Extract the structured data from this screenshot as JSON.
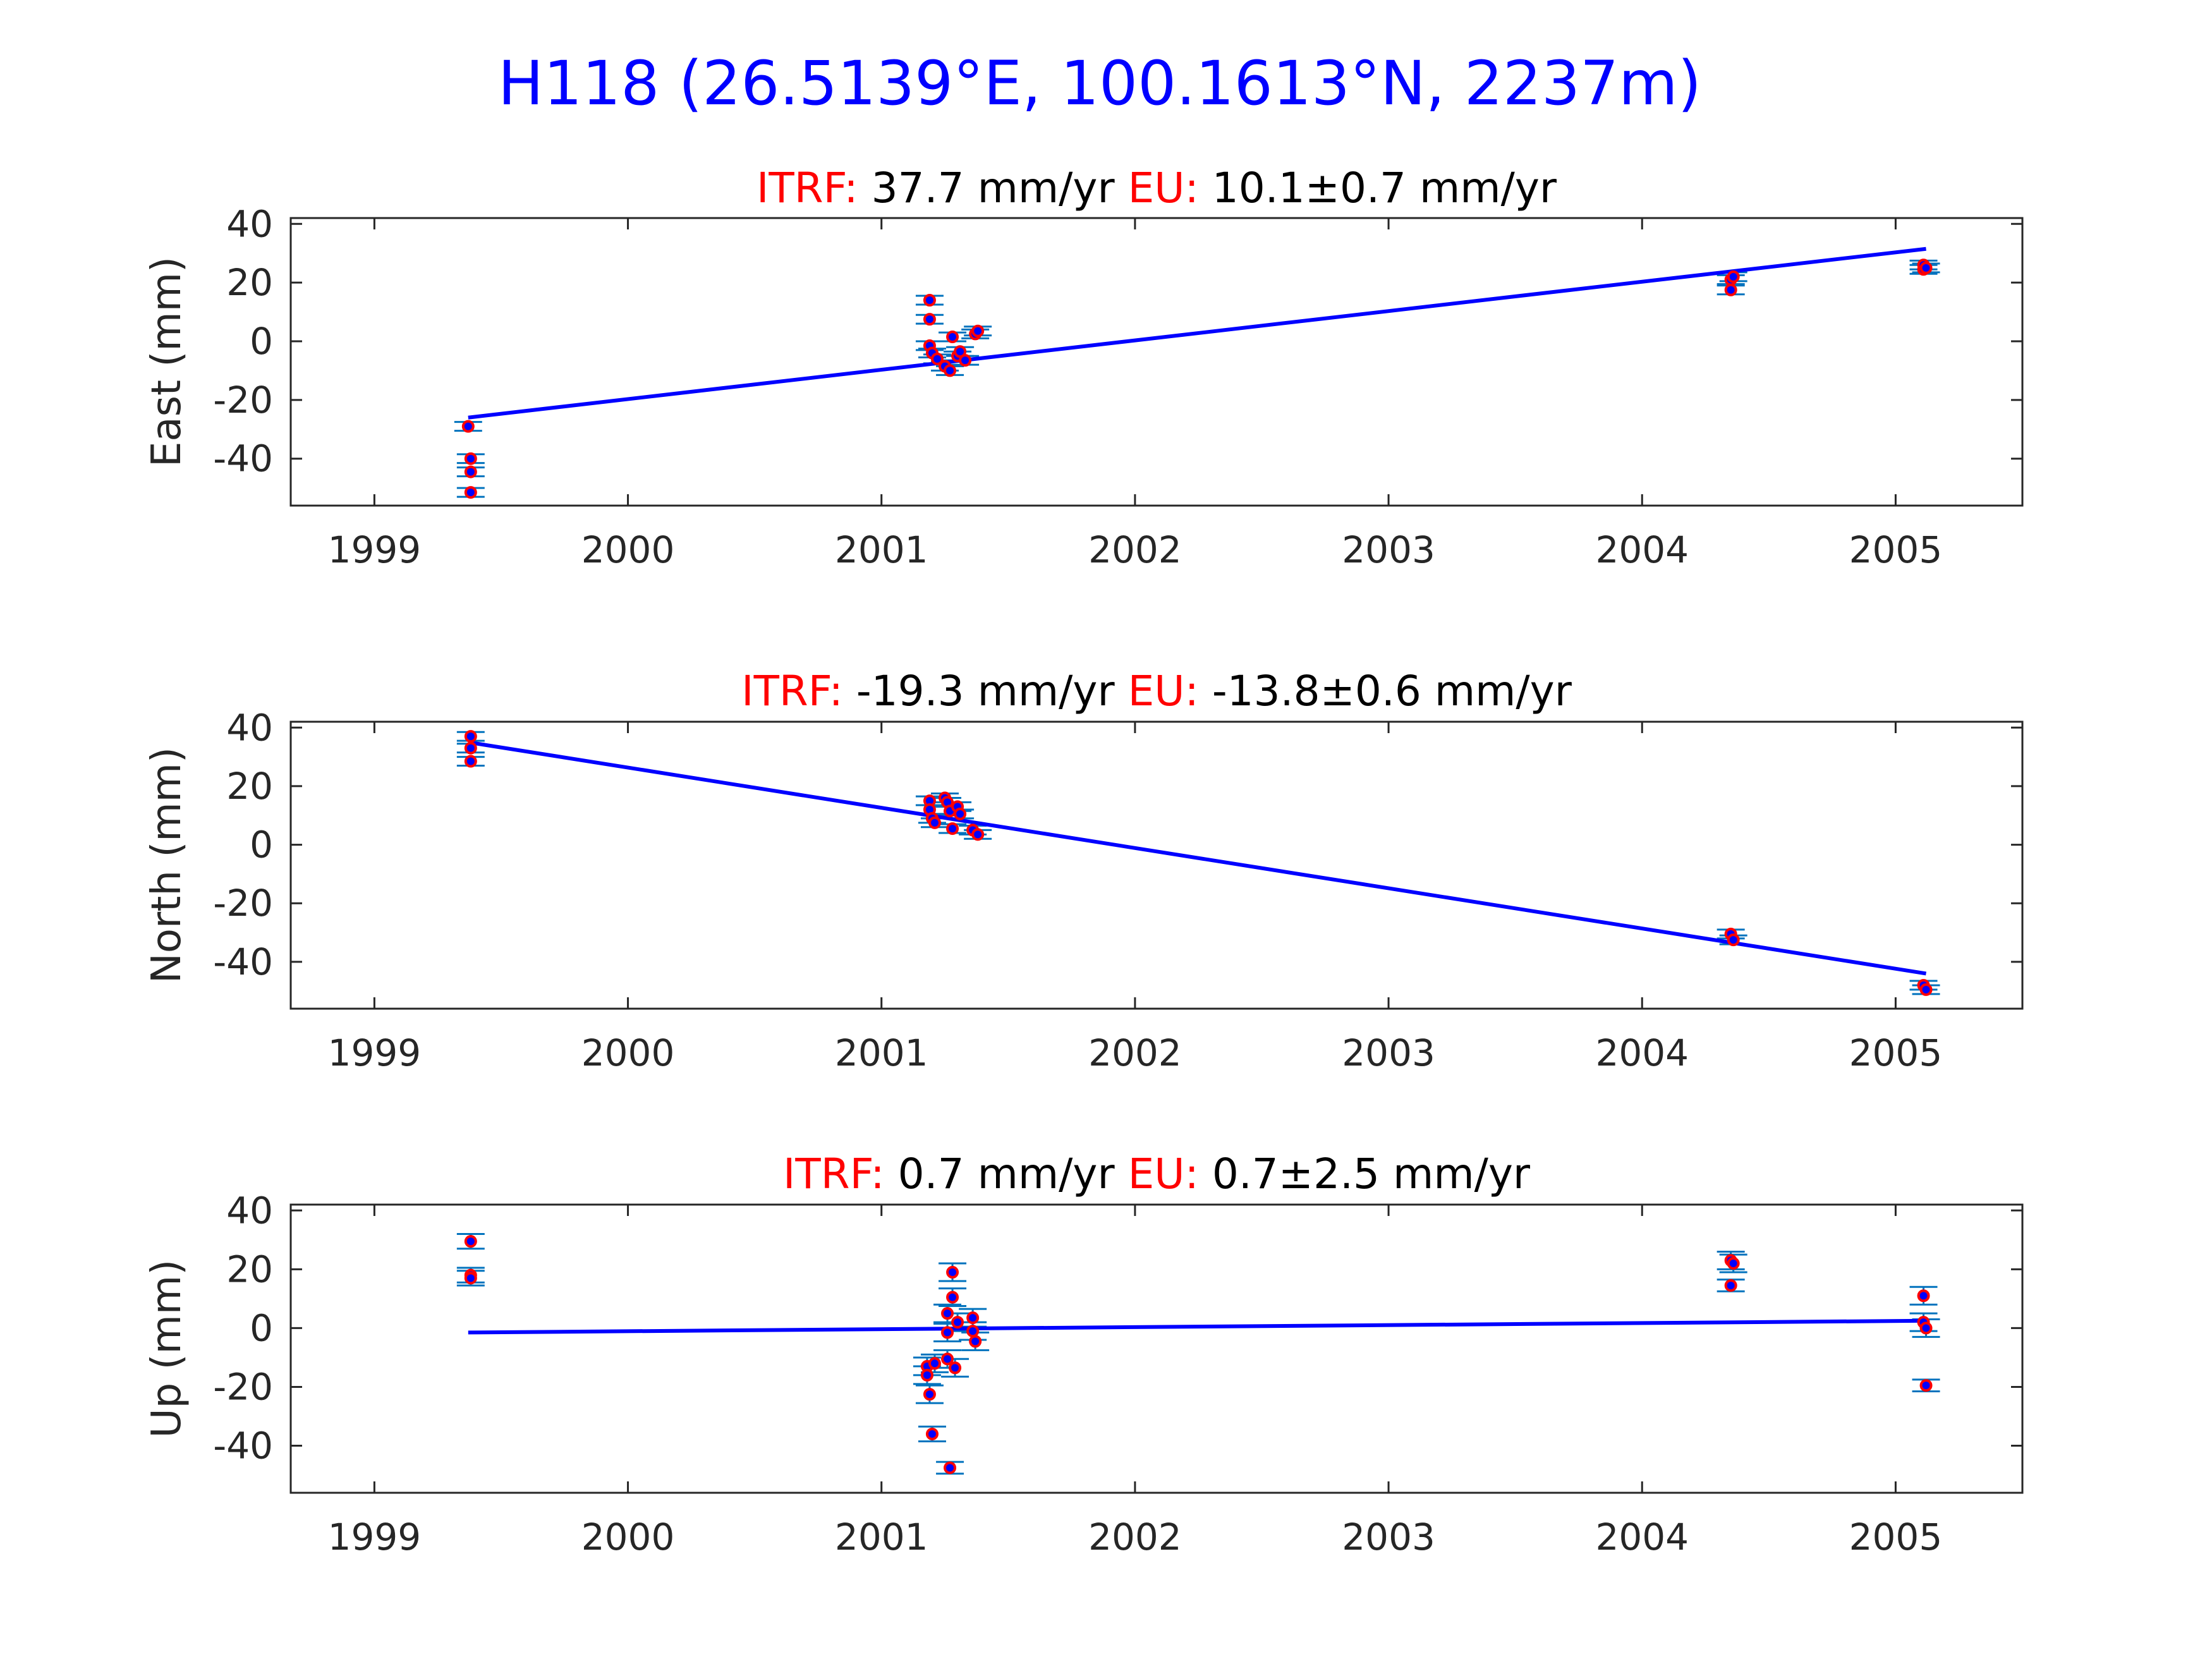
{
  "figure": {
    "title": "H118 (26.5139°E, 100.1613°N, 2237m)",
    "title_color": "#0000ff"
  },
  "colors": {
    "fit_line": "#0000ff",
    "errorbar": "#0072bd",
    "marker_fill": "#0000ff",
    "marker_edge": "#ff0000",
    "label_red": "#ff0000"
  },
  "chart_data": [
    {
      "type": "scatter",
      "ylabel": "East (mm)",
      "subtitle": {
        "itrf_label": "ITRF:",
        "itrf_value": "37.7 mm/yr",
        "eu_label": "EU:",
        "eu_value": "10.1±0.7 mm/yr"
      },
      "xlim": [
        1998.67,
        2005.5
      ],
      "ylim": [
        -56,
        42
      ],
      "x_ticks": [
        1999,
        2000,
        2001,
        2002,
        2003,
        2004,
        2005
      ],
      "y_ticks": [
        40,
        20,
        0,
        -20,
        -40
      ],
      "fit": {
        "x": [
          1999.37,
          2005.12
        ],
        "y": [
          -26,
          31.5
        ]
      },
      "points": [
        {
          "x": 1999.37,
          "y": -29,
          "err": 1.5
        },
        {
          "x": 1999.38,
          "y": -40,
          "err": 1.5
        },
        {
          "x": 1999.38,
          "y": -44.5,
          "err": 1.5
        },
        {
          "x": 1999.38,
          "y": -51.5,
          "err": 1.5
        },
        {
          "x": 2001.19,
          "y": 14,
          "err": 1.5
        },
        {
          "x": 2001.19,
          "y": 7.5,
          "err": 1.5
        },
        {
          "x": 2001.19,
          "y": -1.5,
          "err": 1.5
        },
        {
          "x": 2001.2,
          "y": -4,
          "err": 1.5
        },
        {
          "x": 2001.22,
          "y": -6,
          "err": 1.5
        },
        {
          "x": 2001.25,
          "y": -8.5,
          "err": 1.5
        },
        {
          "x": 2001.27,
          "y": -10,
          "err": 1.5
        },
        {
          "x": 2001.28,
          "y": 1.5,
          "err": 1.5
        },
        {
          "x": 2001.3,
          "y": -5,
          "err": 1.5
        },
        {
          "x": 2001.31,
          "y": -3.5,
          "err": 1.5
        },
        {
          "x": 2001.33,
          "y": -6.5,
          "err": 1.5
        },
        {
          "x": 2001.37,
          "y": 2.5,
          "err": 1.5
        },
        {
          "x": 2001.38,
          "y": 3.5,
          "err": 1.5
        },
        {
          "x": 2004.35,
          "y": 17.5,
          "err": 1.5
        },
        {
          "x": 2004.35,
          "y": 21,
          "err": 1.5
        },
        {
          "x": 2004.36,
          "y": 22,
          "err": 1.5
        },
        {
          "x": 2005.11,
          "y": 24.5,
          "err": 1.5
        },
        {
          "x": 2005.11,
          "y": 26,
          "err": 1.5
        },
        {
          "x": 2005.12,
          "y": 25,
          "err": 1.5
        }
      ]
    },
    {
      "type": "scatter",
      "ylabel": "North (mm)",
      "subtitle": {
        "itrf_label": "ITRF:",
        "itrf_value": "-19.3 mm/yr",
        "eu_label": "EU:",
        "eu_value": "-13.8±0.6 mm/yr"
      },
      "xlim": [
        1998.67,
        2005.5
      ],
      "ylim": [
        -56,
        42
      ],
      "x_ticks": [
        1999,
        2000,
        2001,
        2002,
        2003,
        2004,
        2005
      ],
      "y_ticks": [
        40,
        20,
        0,
        -20,
        -40
      ],
      "fit": {
        "x": [
          1999.37,
          2005.12
        ],
        "y": [
          35,
          -44
        ]
      },
      "points": [
        {
          "x": 1999.38,
          "y": 37,
          "err": 1.5
        },
        {
          "x": 1999.38,
          "y": 33,
          "err": 1.5
        },
        {
          "x": 1999.38,
          "y": 28.5,
          "err": 1.5
        },
        {
          "x": 2001.19,
          "y": 15,
          "err": 1.5
        },
        {
          "x": 2001.19,
          "y": 12,
          "err": 1.5
        },
        {
          "x": 2001.2,
          "y": 9,
          "err": 1.5
        },
        {
          "x": 2001.21,
          "y": 7.5,
          "err": 1.5
        },
        {
          "x": 2001.25,
          "y": 16,
          "err": 1.5
        },
        {
          "x": 2001.26,
          "y": 14.5,
          "err": 1.5
        },
        {
          "x": 2001.27,
          "y": 11.5,
          "err": 1.5
        },
        {
          "x": 2001.28,
          "y": 5.5,
          "err": 1.5
        },
        {
          "x": 2001.3,
          "y": 13,
          "err": 1.5
        },
        {
          "x": 2001.31,
          "y": 10.5,
          "err": 1.5
        },
        {
          "x": 2001.36,
          "y": 5,
          "err": 1.5
        },
        {
          "x": 2001.38,
          "y": 3.5,
          "err": 1.5
        },
        {
          "x": 2004.35,
          "y": -30.5,
          "err": 1.5
        },
        {
          "x": 2004.36,
          "y": -32.5,
          "err": 1.5
        },
        {
          "x": 2005.11,
          "y": -48,
          "err": 1.5
        },
        {
          "x": 2005.12,
          "y": -49.5,
          "err": 1.5
        }
      ]
    },
    {
      "type": "scatter",
      "ylabel": "Up (mm)",
      "subtitle": {
        "itrf_label": "ITRF:",
        "itrf_value": "0.7 mm/yr",
        "eu_label": "EU:",
        "eu_value": "0.7±2.5 mm/yr"
      },
      "xlim": [
        1998.67,
        2005.5
      ],
      "ylim": [
        -56,
        42
      ],
      "x_ticks": [
        1999,
        2000,
        2001,
        2002,
        2003,
        2004,
        2005
      ],
      "y_ticks": [
        40,
        20,
        0,
        -20,
        -40
      ],
      "fit": {
        "x": [
          1999.37,
          2005.12
        ],
        "y": [
          -1.5,
          2.5
        ]
      },
      "points": [
        {
          "x": 1999.38,
          "y": 29.5,
          "err": 2.5
        },
        {
          "x": 1999.38,
          "y": 18,
          "err": 2.5
        },
        {
          "x": 1999.38,
          "y": 17,
          "err": 2.5
        },
        {
          "x": 2001.18,
          "y": -13,
          "err": 3
        },
        {
          "x": 2001.18,
          "y": -16,
          "err": 3
        },
        {
          "x": 2001.19,
          "y": -22.5,
          "err": 3
        },
        {
          "x": 2001.2,
          "y": -36,
          "err": 2.5
        },
        {
          "x": 2001.21,
          "y": -12,
          "err": 3
        },
        {
          "x": 2001.26,
          "y": 5,
          "err": 3
        },
        {
          "x": 2001.26,
          "y": -1.5,
          "err": 3
        },
        {
          "x": 2001.26,
          "y": -10.5,
          "err": 3
        },
        {
          "x": 2001.27,
          "y": -47.5,
          "err": 2
        },
        {
          "x": 2001.28,
          "y": 19,
          "err": 3
        },
        {
          "x": 2001.28,
          "y": 10.5,
          "err": 3
        },
        {
          "x": 2001.29,
          "y": -13.5,
          "err": 3
        },
        {
          "x": 2001.3,
          "y": 2,
          "err": 3
        },
        {
          "x": 2001.36,
          "y": 3.5,
          "err": 3
        },
        {
          "x": 2001.36,
          "y": -1,
          "err": 3
        },
        {
          "x": 2001.37,
          "y": -4.5,
          "err": 3
        },
        {
          "x": 2004.35,
          "y": 23,
          "err": 3
        },
        {
          "x": 2004.36,
          "y": 22,
          "err": 3
        },
        {
          "x": 2004.35,
          "y": 14.5,
          "err": 2
        },
        {
          "x": 2005.11,
          "y": 11,
          "err": 3
        },
        {
          "x": 2005.11,
          "y": 2,
          "err": 3
        },
        {
          "x": 2005.12,
          "y": 0,
          "err": 3
        },
        {
          "x": 2005.12,
          "y": -19.5,
          "err": 2
        }
      ]
    }
  ]
}
